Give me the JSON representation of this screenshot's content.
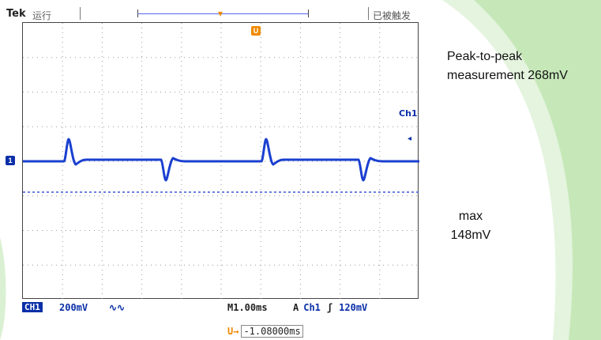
{
  "scope": {
    "brand": "Tek",
    "run_status": "运行",
    "trigger_status": "已被触发",
    "trigger_marker": "U",
    "ch1_marker": "1",
    "right_channel_label": "Ch1",
    "status_bar": {
      "channel": "CH1",
      "volts_per_div": "200mV",
      "bw_limit_icon": "∿∿",
      "timebase_prefix": "M",
      "timebase": "1.00ms",
      "trigger_mode": "A",
      "trigger_source": "Ch1",
      "trigger_slope": "ʃ",
      "trigger_level": "120mV"
    },
    "horizontal_position": {
      "icon": "U→",
      "value": "-1.08000ms"
    }
  },
  "annotations": {
    "peak_to_peak": "Peak-to-peak measurement 268mV",
    "max_label": "max",
    "max_value": "148mV"
  },
  "colors": {
    "trace": "#1a3fd0",
    "marker": "#f08a00",
    "accent": "#0a2fa8",
    "swoosh": "#6cc24a"
  }
}
